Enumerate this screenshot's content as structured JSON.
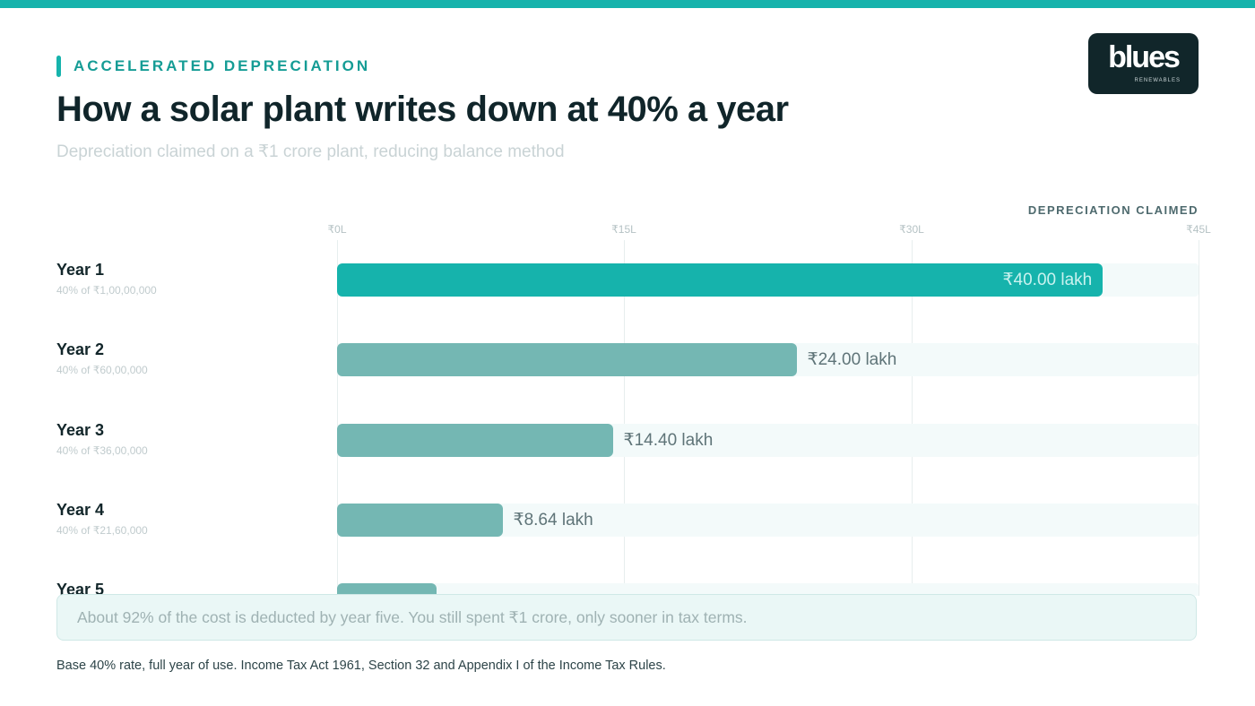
{
  "header": {
    "eyebrow": "ACCELERATED DEPRECIATION",
    "title": "How a solar plant writes down at 40% a year",
    "subtitle": "Depreciation claimed on a ₹1 crore plant, reducing balance method"
  },
  "logo": {
    "word": "blues",
    "sub": "RENEWABLES"
  },
  "colors": {
    "accent": "#16b3ac",
    "bar_primary": "#16b3ac",
    "bar_secondary": "#74b7b3",
    "track": "#f3fafa"
  },
  "chart_data": {
    "type": "bar",
    "orientation": "horizontal",
    "axis_title": "DEPRECIATION CLAIMED",
    "xlim": [
      0,
      45
    ],
    "ticks": [
      0,
      15,
      30,
      45
    ],
    "tick_labels": [
      "₹0L",
      "₹15L",
      "₹30L",
      "₹45L"
    ],
    "grid": true,
    "categories": [
      "Year 1",
      "Year 2",
      "Year 3",
      "Year 4",
      "Year 5"
    ],
    "sublabels": [
      "40% of ₹1,00,00,000",
      "40% of ₹60,00,000",
      "40% of ₹36,00,000",
      "40% of ₹21,60,000",
      ""
    ],
    "values": [
      40.0,
      24.0,
      14.4,
      8.64,
      5.18
    ],
    "value_labels": [
      "₹40.00 lakh",
      "₹24.00 lakh",
      "₹14.40 lakh",
      "₹8.64 lakh",
      ""
    ]
  },
  "callout": "About 92% of the cost is deducted by year five. You still spent ₹1 crore, only sooner in tax terms.",
  "footnote": "Base 40% rate, full year of use. Income Tax Act 1961, Section 32 and Appendix I of the Income Tax Rules."
}
